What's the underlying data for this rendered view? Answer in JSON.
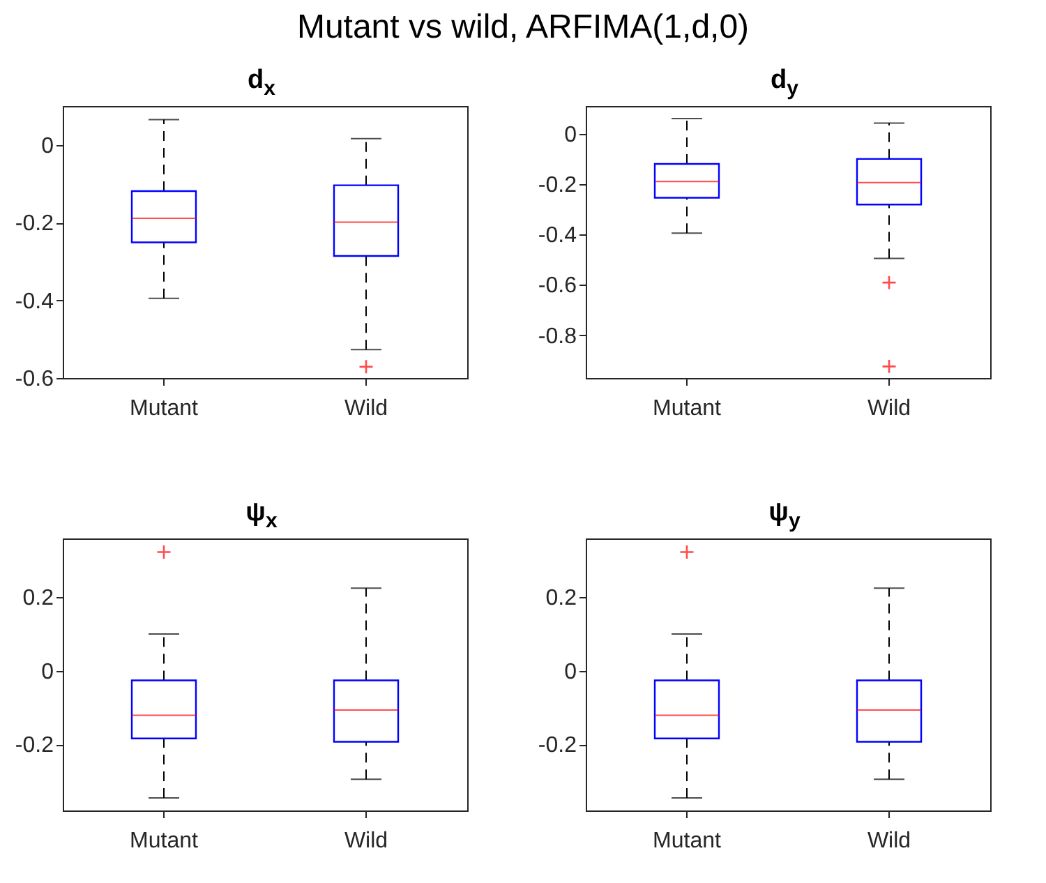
{
  "chart_data": [
    {
      "type": "other",
      "title": "Mutant vs wild, ARFIMA(1,d,0)"
    },
    {
      "type": "box",
      "title": "d$_{x}$",
      "categories": [
        "Mutant",
        "Wild"
      ],
      "ylim": [
        -0.6,
        0.1
      ],
      "yticks": [
        -0.6,
        -0.4,
        -0.2,
        0
      ],
      "marker": "cross",
      "series": [
        {
          "color": "#0000ff",
          "boxes": [
            {
              "low": -0.395,
              "q1": -0.251,
              "median": -0.189,
              "q3": -0.119,
              "high": 0.065
            },
            {
              "low": -0.527,
              "q1": -0.286,
              "median": -0.199,
              "q3": -0.104,
              "high": 0.016,
              "outliers": [
                -0.571
              ]
            }
          ]
        }
      ]
    },
    {
      "type": "box",
      "title": "d$_{y}$",
      "categories": [
        "Mutant",
        "Wild"
      ],
      "ylim": [
        -0.97,
        0.11
      ],
      "yticks": [
        -0.8,
        -0.6,
        -0.4,
        -0.2,
        0
      ],
      "marker": "cross",
      "series": [
        {
          "color": "#0000ff",
          "boxes": [
            {
              "low": -0.395,
              "q1": -0.254,
              "median": -0.19,
              "q3": -0.12,
              "high": 0.06
            },
            {
              "low": -0.495,
              "q1": -0.281,
              "median": -0.194,
              "q3": -0.1,
              "high": 0.042,
              "outliers": [
                -0.591,
                -0.924
              ]
            }
          ]
        }
      ]
    },
    {
      "type": "box",
      "title": "ψ$_{x}$",
      "categories": [
        "Mutant",
        "Wild"
      ],
      "ylim": [
        -0.38,
        0.36
      ],
      "yticks": [
        -0.2,
        0,
        0.2
      ],
      "marker": "cross",
      "series": [
        {
          "color": "#0000ff",
          "boxes": [
            {
              "low": -0.346,
              "q1": -0.184,
              "median": -0.121,
              "q3": -0.026,
              "high": 0.1,
              "outliers": [
                0.323
              ]
            },
            {
              "low": -0.295,
              "q1": -0.193,
              "median": -0.107,
              "q3": -0.026,
              "high": 0.225
            }
          ]
        }
      ]
    },
    {
      "type": "box",
      "title": "ψ$_{y}$",
      "categories": [
        "Mutant",
        "Wild"
      ],
      "ylim": [
        -0.38,
        0.36
      ],
      "yticks": [
        -0.2,
        0,
        0.2
      ],
      "marker": "cross",
      "series": [
        {
          "color": "#0000ff",
          "boxes": [
            {
              "low": -0.346,
              "q1": -0.184,
              "median": -0.121,
              "q3": -0.026,
              "high": 0.1,
              "outliers": [
                0.323
              ]
            },
            {
              "low": -0.295,
              "q1": -0.193,
              "median": -0.107,
              "q3": -0.026,
              "high": 0.225
            }
          ]
        }
      ]
    }
  ]
}
